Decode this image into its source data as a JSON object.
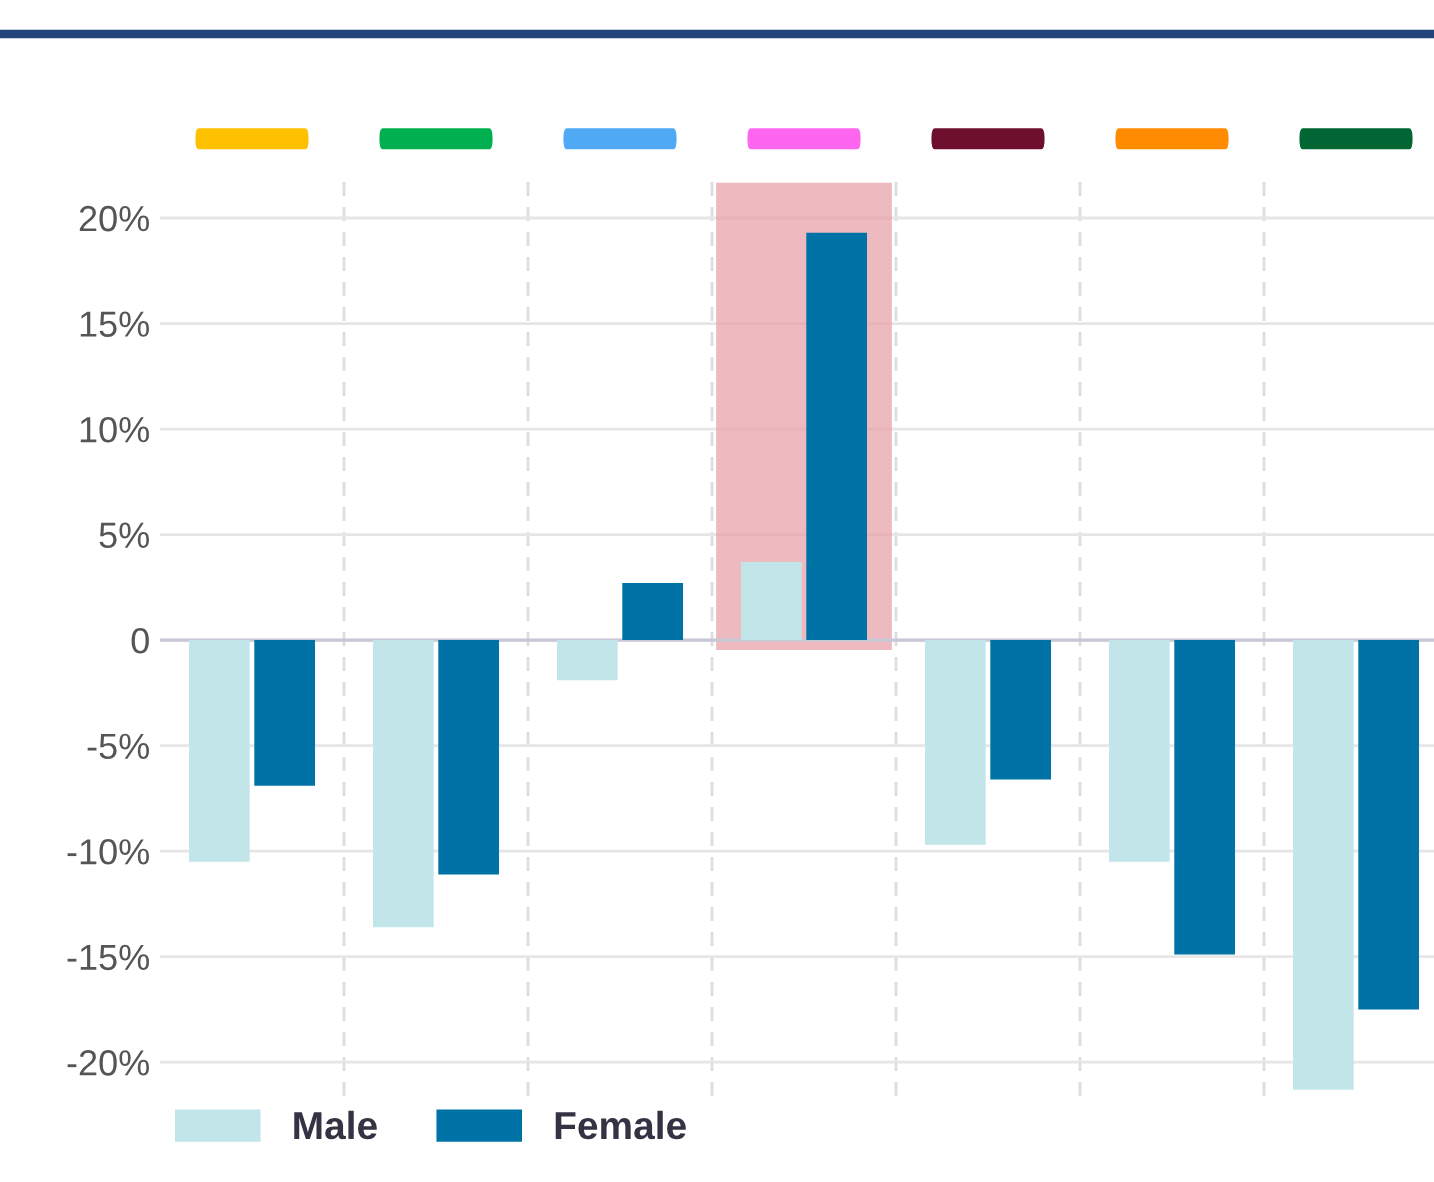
{
  "chart_data": {
    "type": "bar",
    "categories": [
      null,
      null,
      null,
      null,
      null,
      null,
      null
    ],
    "series": [
      {
        "name": "Male",
        "color": "#c2e5ea",
        "values": [
          -10.5,
          -13.6,
          -1.9,
          3.7,
          -9.7,
          -10.5,
          -21.3
        ]
      },
      {
        "name": "Female",
        "color": "#0073a6",
        "values": [
          -6.9,
          -11.1,
          2.7,
          19.3,
          -6.6,
          -14.9,
          -17.5
        ]
      }
    ],
    "ylim": [
      -21.6,
      21.8
    ],
    "yticks": [
      {
        "value": -20,
        "label": "-20%"
      },
      {
        "value": -15,
        "label": "-15%"
      },
      {
        "value": -10,
        "label": "-10%"
      },
      {
        "value": -5,
        "label": "-5%"
      },
      {
        "value": 0,
        "label": "0"
      },
      {
        "value": 5,
        "label": "5%"
      },
      {
        "value": 10,
        "label": "10%"
      },
      {
        "value": 15,
        "label": "15%"
      },
      {
        "value": 20,
        "label": "20%"
      }
    ],
    "grid": true,
    "legend": "bottom left"
  }
}
